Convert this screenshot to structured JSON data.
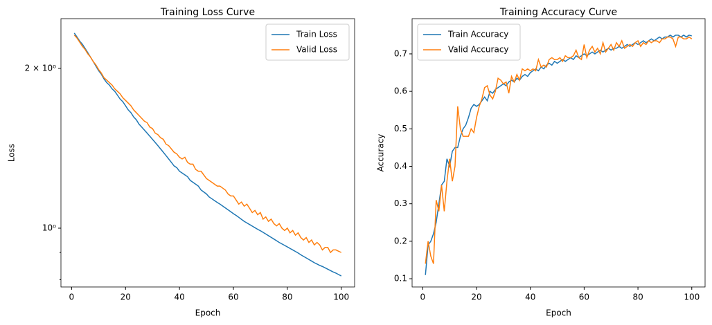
{
  "chart_data": [
    {
      "type": "line",
      "title": "Training Loss Curve",
      "x_label": "Epoch",
      "y_label": "Loss",
      "log_y": true,
      "legend": "upper right",
      "xlim": [
        -3.95,
        104.95
      ],
      "xticks": [
        0,
        20,
        40,
        60,
        80,
        100
      ],
      "ylim": [
        0.775,
        2.48
      ],
      "yticks": [
        {
          "value": 1,
          "label": "10⁰"
        },
        {
          "value": 2,
          "label": "2 × 10⁰"
        }
      ],
      "yminorticks": [
        0.8,
        0.9
      ],
      "x": [
        1,
        2,
        3,
        4,
        5,
        6,
        7,
        8,
        9,
        10,
        11,
        12,
        13,
        14,
        15,
        16,
        17,
        18,
        19,
        20,
        21,
        22,
        23,
        24,
        25,
        26,
        27,
        28,
        29,
        30,
        31,
        32,
        33,
        34,
        35,
        36,
        37,
        38,
        39,
        40,
        41,
        42,
        43,
        44,
        45,
        46,
        47,
        48,
        49,
        50,
        51,
        52,
        53,
        54,
        55,
        56,
        57,
        58,
        59,
        60,
        61,
        62,
        63,
        64,
        65,
        66,
        67,
        68,
        69,
        70,
        71,
        72,
        73,
        74,
        75,
        76,
        77,
        78,
        79,
        80,
        81,
        82,
        83,
        84,
        85,
        86,
        87,
        88,
        89,
        90,
        91,
        92,
        93,
        94,
        95,
        96,
        97,
        98,
        99,
        100
      ],
      "series": [
        {
          "name": "Train Loss",
          "color": "#1f77b4",
          "values": [
            2.33,
            2.29,
            2.25,
            2.22,
            2.18,
            2.14,
            2.1,
            2.06,
            2.02,
            1.98,
            1.95,
            1.91,
            1.88,
            1.86,
            1.83,
            1.81,
            1.78,
            1.75,
            1.73,
            1.7,
            1.67,
            1.65,
            1.62,
            1.6,
            1.57,
            1.55,
            1.53,
            1.51,
            1.49,
            1.47,
            1.45,
            1.43,
            1.41,
            1.39,
            1.37,
            1.35,
            1.33,
            1.31,
            1.3,
            1.28,
            1.27,
            1.26,
            1.25,
            1.23,
            1.22,
            1.21,
            1.2,
            1.18,
            1.17,
            1.16,
            1.145,
            1.136,
            1.127,
            1.118,
            1.11,
            1.101,
            1.092,
            1.083,
            1.074,
            1.065,
            1.057,
            1.048,
            1.039,
            1.03,
            1.023,
            1.016,
            1.009,
            1.002,
            0.995,
            0.989,
            0.982,
            0.975,
            0.968,
            0.961,
            0.954,
            0.947,
            0.94,
            0.934,
            0.928,
            0.922,
            0.916,
            0.91,
            0.904,
            0.898,
            0.891,
            0.885,
            0.879,
            0.873,
            0.867,
            0.861,
            0.856,
            0.851,
            0.847,
            0.842,
            0.837,
            0.832,
            0.827,
            0.823,
            0.818,
            0.813
          ]
        },
        {
          "name": "Valid Loss",
          "color": "#ff7f0e",
          "values": [
            2.31,
            2.28,
            2.24,
            2.2,
            2.17,
            2.13,
            2.1,
            2.06,
            2.03,
            1.99,
            1.96,
            1.92,
            1.9,
            1.88,
            1.86,
            1.83,
            1.81,
            1.79,
            1.76,
            1.74,
            1.72,
            1.7,
            1.67,
            1.65,
            1.63,
            1.61,
            1.59,
            1.58,
            1.55,
            1.54,
            1.51,
            1.5,
            1.48,
            1.47,
            1.44,
            1.43,
            1.41,
            1.39,
            1.38,
            1.36,
            1.35,
            1.36,
            1.33,
            1.32,
            1.32,
            1.29,
            1.28,
            1.28,
            1.26,
            1.24,
            1.23,
            1.22,
            1.21,
            1.2,
            1.2,
            1.19,
            1.18,
            1.16,
            1.15,
            1.15,
            1.13,
            1.11,
            1.12,
            1.1,
            1.11,
            1.09,
            1.07,
            1.08,
            1.06,
            1.07,
            1.04,
            1.05,
            1.03,
            1.04,
            1.02,
            1.01,
            1.02,
            1.0,
            0.99,
            1.0,
            0.98,
            0.99,
            0.97,
            0.98,
            0.96,
            0.95,
            0.96,
            0.94,
            0.95,
            0.93,
            0.94,
            0.93,
            0.91,
            0.92,
            0.92,
            0.9,
            0.91,
            0.91,
            0.905,
            0.9
          ]
        }
      ]
    },
    {
      "type": "line",
      "title": "Training Accuracy Curve",
      "x_label": "Epoch",
      "y_label": "Accuracy",
      "log_y": false,
      "legend": "upper left",
      "xlim": [
        -3.95,
        104.95
      ],
      "xticks": [
        0,
        20,
        40,
        60,
        80,
        100
      ],
      "ylim": [
        0.078,
        0.794
      ],
      "yticks": [
        0.1,
        0.2,
        0.3,
        0.4,
        0.5,
        0.6,
        0.7
      ],
      "x": [
        1,
        2,
        3,
        4,
        5,
        6,
        7,
        8,
        9,
        10,
        11,
        12,
        13,
        14,
        15,
        16,
        17,
        18,
        19,
        20,
        21,
        22,
        23,
        24,
        25,
        26,
        27,
        28,
        29,
        30,
        31,
        32,
        33,
        34,
        35,
        36,
        37,
        38,
        39,
        40,
        41,
        42,
        43,
        44,
        45,
        46,
        47,
        48,
        49,
        50,
        51,
        52,
        53,
        54,
        55,
        56,
        57,
        58,
        59,
        60,
        61,
        62,
        63,
        64,
        65,
        66,
        67,
        68,
        69,
        70,
        71,
        72,
        73,
        74,
        75,
        76,
        77,
        78,
        79,
        80,
        81,
        82,
        83,
        84,
        85,
        86,
        87,
        88,
        89,
        90,
        91,
        92,
        93,
        94,
        95,
        96,
        97,
        98,
        99,
        100
      ],
      "series": [
        {
          "name": "Train Accuracy",
          "color": "#1f77b4",
          "values": [
            0.11,
            0.19,
            0.2,
            0.22,
            0.25,
            0.3,
            0.35,
            0.36,
            0.42,
            0.4,
            0.44,
            0.45,
            0.45,
            0.48,
            0.5,
            0.51,
            0.53,
            0.555,
            0.565,
            0.56,
            0.565,
            0.575,
            0.585,
            0.575,
            0.6,
            0.595,
            0.605,
            0.61,
            0.615,
            0.62,
            0.615,
            0.625,
            0.63,
            0.625,
            0.635,
            0.63,
            0.64,
            0.645,
            0.64,
            0.65,
            0.655,
            0.66,
            0.655,
            0.665,
            0.66,
            0.67,
            0.675,
            0.67,
            0.68,
            0.675,
            0.68,
            0.685,
            0.68,
            0.685,
            0.69,
            0.685,
            0.695,
            0.69,
            0.695,
            0.7,
            0.695,
            0.7,
            0.705,
            0.7,
            0.705,
            0.71,
            0.705,
            0.71,
            0.715,
            0.71,
            0.715,
            0.715,
            0.72,
            0.715,
            0.72,
            0.725,
            0.72,
            0.725,
            0.73,
            0.725,
            0.73,
            0.735,
            0.73,
            0.735,
            0.74,
            0.735,
            0.74,
            0.745,
            0.74,
            0.745,
            0.745,
            0.75,
            0.745,
            0.75,
            0.75,
            0.745,
            0.75,
            0.745,
            0.75,
            0.748
          ]
        },
        {
          "name": "Valid Accuracy",
          "color": "#ff7f0e",
          "values": [
            0.14,
            0.2,
            0.16,
            0.14,
            0.31,
            0.28,
            0.35,
            0.28,
            0.36,
            0.42,
            0.36,
            0.4,
            0.56,
            0.5,
            0.48,
            0.48,
            0.48,
            0.5,
            0.49,
            0.53,
            0.56,
            0.58,
            0.61,
            0.615,
            0.59,
            0.58,
            0.6,
            0.635,
            0.63,
            0.62,
            0.625,
            0.595,
            0.64,
            0.625,
            0.645,
            0.63,
            0.66,
            0.655,
            0.66,
            0.655,
            0.66,
            0.655,
            0.685,
            0.665,
            0.67,
            0.665,
            0.685,
            0.69,
            0.685,
            0.685,
            0.69,
            0.68,
            0.695,
            0.69,
            0.69,
            0.695,
            0.71,
            0.69,
            0.685,
            0.725,
            0.69,
            0.71,
            0.72,
            0.705,
            0.715,
            0.7,
            0.73,
            0.705,
            0.715,
            0.725,
            0.71,
            0.73,
            0.72,
            0.735,
            0.715,
            0.72,
            0.725,
            0.72,
            0.73,
            0.735,
            0.72,
            0.73,
            0.725,
            0.735,
            0.73,
            0.735,
            0.735,
            0.73,
            0.74,
            0.74,
            0.745,
            0.745,
            0.74,
            0.72,
            0.745,
            0.745,
            0.74,
            0.74,
            0.745,
            0.74
          ]
        }
      ]
    }
  ]
}
